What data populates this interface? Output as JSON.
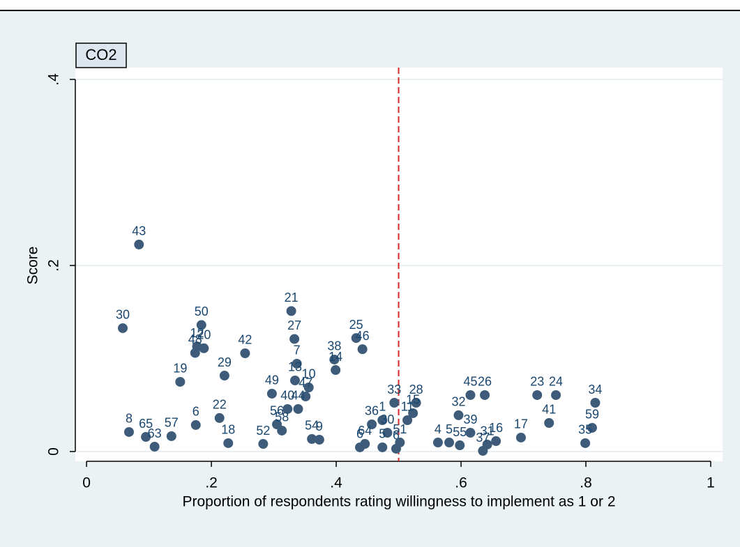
{
  "chart_data": {
    "type": "scatter",
    "title": "CO2",
    "xlabel": "Proportion of respondents rating willingness to implement as 1 or 2",
    "ylabel": "Score",
    "xlim": [
      -0.018,
      1.019
    ],
    "ylim": [
      -0.0105,
      0.4127
    ],
    "xticks": [
      0,
      {
        "value": 0.2,
        "label": ".2"
      },
      {
        "value": 0.4,
        "label": ".4"
      },
      {
        "value": 0.6,
        "label": ".6"
      },
      {
        "value": 0.8,
        "label": ".8"
      },
      1
    ],
    "yticks": [
      0,
      {
        "value": 0.2,
        "label": ".2"
      },
      {
        "value": 0.4,
        "label": ".4"
      }
    ],
    "grid": true,
    "reference_line": {
      "x": 0.5,
      "color": "#d62728",
      "style": "dashed"
    },
    "series": [
      {
        "color": "#3e5c7a",
        "x": [
          0.084,
          0.058,
          0.184,
          0.177,
          0.188,
          0.174,
          0.15,
          0.254,
          0.221,
          0.328,
          0.333,
          0.337,
          0.334,
          0.356,
          0.351,
          0.339,
          0.297,
          0.322,
          0.305,
          0.313,
          0.175,
          0.213,
          0.227,
          0.283,
          0.361,
          0.373,
          0.068,
          0.095,
          0.109,
          0.136,
          0.397,
          0.399,
          0.432,
          0.442,
          0.457,
          0.474,
          0.482,
          0.438,
          0.446,
          0.474,
          0.496,
          0.502,
          0.493,
          0.528,
          0.523,
          0.514,
          0.563,
          0.581,
          0.598,
          0.596,
          0.615,
          0.615,
          0.638,
          0.642,
          0.635,
          0.656,
          0.696,
          0.722,
          0.752,
          0.741,
          0.815,
          0.81,
          0.799
        ],
        "values": [
          0.2225,
          0.1326,
          0.136,
          0.113,
          0.111,
          0.106,
          0.0749,
          0.1056,
          0.0816,
          0.151,
          0.121,
          0.0944,
          0.0764,
          0.0689,
          0.0592,
          0.0457,
          0.0622,
          0.0457,
          0.0292,
          0.0225,
          0.0285,
          0.036,
          0.009,
          0.0082,
          0.0135,
          0.0127,
          0.021,
          0.0157,
          0.0052,
          0.0165,
          0.0989,
          0.0876,
          0.122,
          0.11,
          0.0292,
          0.0337,
          0.0202,
          0.0045,
          0.0082,
          0.0045,
          0.003,
          0.0097,
          0.0524,
          0.0524,
          0.0412,
          0.0337,
          0.0097,
          0.0097,
          0.0067,
          0.039,
          0.0202,
          0.0607,
          0.0607,
          0.0075,
          0.0007,
          0.0112,
          0.015,
          0.0607,
          0.0607,
          0.0307,
          0.0524,
          0.0255,
          0.009
        ],
        "point_labels": [
          "43",
          "30",
          "50",
          "12",
          "20",
          "48",
          "19",
          "42",
          "29",
          "21",
          "27",
          "7",
          "13",
          "10",
          "47",
          "44",
          "49",
          "40",
          "56",
          "58",
          "6",
          "22",
          "18",
          "52",
          "54",
          "9",
          "8",
          "65",
          "63",
          "57",
          "38",
          "14",
          "25",
          "46",
          "36",
          "1",
          "30",
          "6",
          "64",
          "5",
          "6",
          "51",
          "33",
          "28",
          "15",
          "11",
          "4",
          "5",
          "55",
          "32",
          "39",
          "45",
          "26",
          "31",
          "37",
          "16",
          "17",
          "23",
          "24",
          "41",
          "34",
          "59",
          "35"
        ]
      }
    ]
  }
}
